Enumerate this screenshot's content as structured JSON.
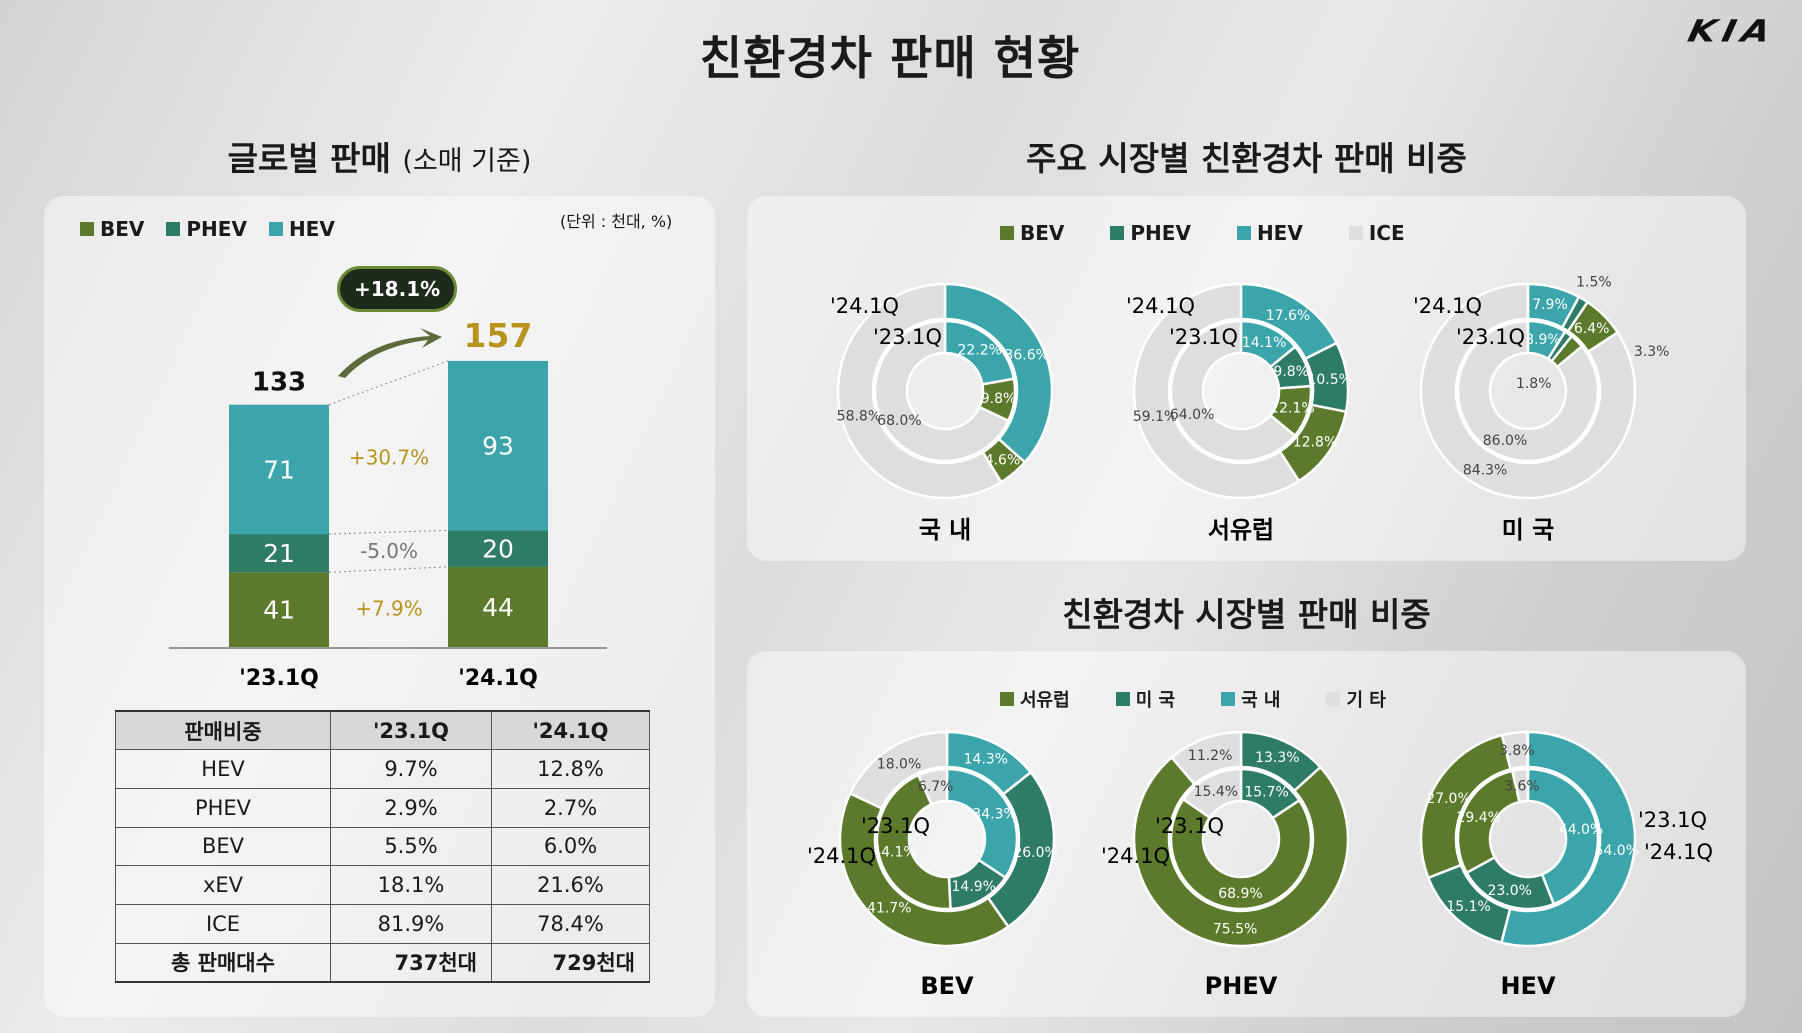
{
  "header": {
    "title": "친환경차 판매 현황",
    "brand": "KIA"
  },
  "left": {
    "title": "글로벌 판매",
    "title_note": "(소매 기준)",
    "unit": "(단위 : 천대, %)",
    "legend": [
      "BEV",
      "PHEV",
      "HEV"
    ],
    "table": {
      "headers": [
        "판매비중",
        "'23.1Q",
        "'24.1Q"
      ],
      "rows": [
        [
          "HEV",
          "9.7%",
          "12.8%"
        ],
        [
          "PHEV",
          "2.9%",
          "2.7%"
        ],
        [
          "BEV",
          "5.5%",
          "6.0%"
        ],
        [
          "xEV",
          "18.1%",
          "21.6%"
        ],
        [
          "ICE",
          "81.9%",
          "78.4%"
        ],
        [
          "총 판매대수",
          "737천대",
          "729천대"
        ]
      ]
    }
  },
  "right_top": {
    "title": "주요 시장별 친환경차 판매 비중",
    "legend": [
      "BEV",
      "PHEV",
      "HEV",
      "ICE"
    ]
  },
  "right_bottom": {
    "title": "친환경차 시장별 판매 비중",
    "legend": [
      "서유럽",
      "미 국",
      "국 내",
      "기 타"
    ]
  },
  "colors": {
    "BEV": "#5b7a2b",
    "PHEV": "#2e7b68",
    "HEV": "#3ba5ab",
    "ICE": "#dedede",
    "text_gold": "#b8941e"
  },
  "chart_data": [
    {
      "type": "bar",
      "title": "글로벌 판매",
      "categories": [
        "'23.1Q",
        "'24.1Q"
      ],
      "series": [
        {
          "name": "BEV",
          "values": [
            41,
            44
          ]
        },
        {
          "name": "PHEV",
          "values": [
            21,
            20
          ]
        },
        {
          "name": "HEV",
          "values": [
            71,
            93
          ]
        }
      ],
      "totals": [
        133,
        157
      ],
      "growth": {
        "BEV": "+7.9%",
        "PHEV": "-5.0%",
        "HEV": "+30.7%",
        "total": "+18.1%"
      }
    },
    {
      "type": "pie",
      "title": "국 내",
      "categories": [
        "HEV",
        "PHEV",
        "BEV",
        "ICE"
      ],
      "outer": {
        "label": "'24.1Q",
        "values": [
          36.6,
          0,
          4.6,
          58.8
        ]
      },
      "inner": {
        "label": "'23.1Q",
        "values": [
          22.2,
          0,
          9.8,
          68.0
        ]
      }
    },
    {
      "type": "pie",
      "title": "서유럽",
      "categories": [
        "HEV",
        "PHEV",
        "BEV",
        "ICE"
      ],
      "outer": {
        "label": "'24.1Q",
        "values": [
          17.6,
          10.5,
          12.8,
          59.1
        ]
      },
      "inner": {
        "label": "'23.1Q",
        "values": [
          14.1,
          9.8,
          12.1,
          64.0
        ]
      }
    },
    {
      "type": "pie",
      "title": "미 국",
      "categories": [
        "HEV",
        "PHEV",
        "BEV",
        "ICE"
      ],
      "outer": {
        "label": "'24.1Q",
        "values": [
          7.9,
          1.5,
          6.4,
          84.3
        ]
      },
      "inner": {
        "label": "'23.1Q",
        "values": [
          8.9,
          1.8,
          3.3,
          86.0
        ]
      }
    },
    {
      "type": "pie",
      "title": "BEV",
      "categories": [
        "국 내",
        "미 국",
        "서유럽",
        "기 타"
      ],
      "outer": {
        "label": "'24.1Q",
        "values": [
          14.3,
          26.0,
          41.7,
          18.0
        ]
      },
      "inner": {
        "label": "'23.1Q",
        "values": [
          34.3,
          14.9,
          44.1,
          6.7
        ]
      }
    },
    {
      "type": "pie",
      "title": "PHEV",
      "categories": [
        "국 내",
        "미 국",
        "서유럽",
        "기 타"
      ],
      "outer": {
        "label": "'24.1Q",
        "values": [
          0,
          13.3,
          75.5,
          11.2
        ]
      },
      "inner": {
        "label": "'23.1Q",
        "values": [
          0,
          15.7,
          68.9,
          15.4
        ]
      }
    },
    {
      "type": "pie",
      "title": "HEV",
      "categories": [
        "국 내",
        "미 국",
        "서유럽",
        "기 타"
      ],
      "outer": {
        "label": "'24.1Q",
        "values": [
          54.0,
          15.1,
          27.0,
          3.8
        ]
      },
      "inner": {
        "label": "'23.1Q",
        "values": [
          44.0,
          23.0,
          29.4,
          3.6
        ]
      }
    }
  ]
}
